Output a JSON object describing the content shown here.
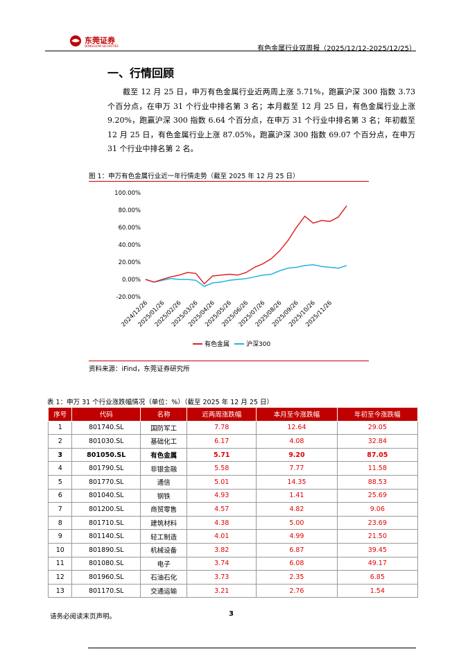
{
  "header": {
    "logo": "东莞证券",
    "logo_sub": "DONGGUAN SECURITIES",
    "title": "有色金属行业双周报（2025/12/12-2025/12/25）"
  },
  "section_title": "一、行情回顾",
  "paragraph": "截至 12 月 25 日，申万有色金属行业近两周上涨 5.71%，跑赢沪深 300 指数 3.73 个百分点，在申万 31 个行业中排名第 3 名；本月截至 12 月 25 日，有色金属行业上涨 9.20%，跑赢沪深 300 指数 6.64 个百分点，在申万 31 个行业中排名第 3 名；年初截至 12 月 25 日，有色金属行业上涨 87.05%，跑赢沪深 300 指数 69.07 个百分点，在申万 31 个行业中排名第 2 名。",
  "figure_caption": "图 1：申万有色金属行业近一年行情走势（截至 2025 年 12 月 25 日）",
  "chart_data": {
    "type": "line",
    "categories": [
      "2024/12/26",
      null,
      "2025/01/26",
      null,
      "2025/02/26",
      null,
      "2025/03/26",
      null,
      "2025/04/26",
      null,
      "2025/05/26",
      null,
      "2025/06/26",
      null,
      "2025/07/26",
      null,
      "2025/08/26",
      null,
      "2025/09/26",
      null,
      "2025/10/26",
      null,
      "2025/11/26",
      null,
      null
    ],
    "series": [
      {
        "name": "有色金属",
        "color": "#e02020",
        "values": [
          0,
          -3,
          0,
          3,
          5,
          8,
          7,
          -5,
          4,
          5,
          6,
          5,
          8,
          14,
          18,
          24,
          33,
          45,
          60,
          73,
          65,
          68,
          67,
          72,
          85
        ]
      },
      {
        "name": "沪深300",
        "color": "#1fb3e0",
        "values": [
          0,
          -3,
          -1,
          1,
          0,
          0,
          -1,
          -8,
          -4,
          -3,
          -1,
          0,
          1,
          3,
          5,
          6,
          10,
          13,
          14,
          16,
          17,
          15,
          14,
          13,
          16
        ]
      }
    ],
    "ylim": [
      -20,
      100
    ],
    "yticks": [
      {
        "value": 100,
        "label": "100.00%"
      },
      {
        "value": 80,
        "label": "80.00%"
      },
      {
        "value": 60,
        "label": "60.00%"
      },
      {
        "value": 40,
        "label": "40.00%"
      },
      {
        "value": 20,
        "label": "20.00%"
      },
      {
        "value": 0,
        "label": "0.00%"
      },
      {
        "value": -20,
        "label": "-20.00%"
      }
    ],
    "legend": "bottom"
  },
  "source": "资料来源：iFind，东莞证券研究所",
  "table_caption": "表 1：申万 31 个行业涨跌幅情况（单位：%）（截至 2025 年 12 月 25 日）",
  "table": {
    "header": [
      "序号",
      "代码",
      "名称",
      "近两周涨跌幅",
      "本月至今涨跌幅",
      "年初至今涨跌幅"
    ],
    "rows": [
      [
        "1",
        "801740.SL",
        "国防军工",
        "7.78",
        "12.64",
        "29.05"
      ],
      [
        "2",
        "801030.SL",
        "基础化工",
        "6.17",
        "4.08",
        "32.84"
      ],
      [
        "3",
        "801050.SL",
        "有色金属",
        "5.71",
        "9.20",
        "87.05"
      ],
      [
        "4",
        "801790.SL",
        "非银金融",
        "5.58",
        "7.77",
        "11.58"
      ],
      [
        "5",
        "801770.SL",
        "通信",
        "5.01",
        "14.35",
        "88.53"
      ],
      [
        "6",
        "801040.SL",
        "钢铁",
        "4.93",
        "1.41",
        "25.69"
      ],
      [
        "7",
        "801200.SL",
        "商贸零售",
        "4.57",
        "4.82",
        "9.06"
      ],
      [
        "8",
        "801710.SL",
        "建筑材料",
        "4.38",
        "5.00",
        "23.69"
      ],
      [
        "9",
        "801140.SL",
        "轻工制造",
        "4.01",
        "4.99",
        "21.50"
      ],
      [
        "10",
        "801890.SL",
        "机械设备",
        "3.82",
        "6.87",
        "39.45"
      ],
      [
        "11",
        "801080.SL",
        "电子",
        "3.74",
        "6.08",
        "49.17"
      ],
      [
        "12",
        "801960.SL",
        "石油石化",
        "3.73",
        "2.35",
        "6.85"
      ],
      [
        "13",
        "801170.SL",
        "交通运输",
        "3.21",
        "2.76",
        "1.54"
      ]
    ]
  },
  "footer": {
    "disclaimer": "请务必阅读末页声明。",
    "page": "3"
  }
}
